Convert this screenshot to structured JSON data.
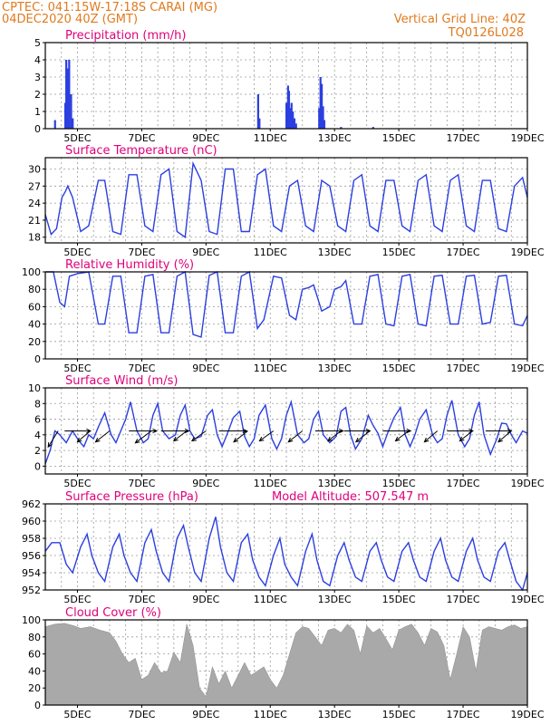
{
  "header": {
    "line1": "CPTEC:   041:15W-17:18S   CARAI (MG)",
    "line2": "04DEC2020 40Z (GMT)",
    "vgrid": "Vertical Grid Line: 40Z",
    "code": "TQ0126L028"
  },
  "chart_data": [
    {
      "id": "precip",
      "type": "bar",
      "title": "Precipitation (mm/h)",
      "ylim": [
        0,
        5
      ],
      "yticks": [
        0,
        1,
        2,
        3,
        4,
        5
      ],
      "xlim": [
        4.0,
        19.0
      ],
      "xtick_labels": [
        "5DEC",
        "7DEC",
        "9DEC",
        "11DEC",
        "13DEC",
        "15DEC",
        "17DEC",
        "19DEC"
      ],
      "color": "#2b3fe0",
      "x": [
        4.3,
        4.62,
        4.65,
        4.7,
        4.74,
        4.8,
        4.85,
        10.62,
        10.66,
        11.5,
        11.55,
        11.58,
        11.62,
        11.66,
        11.7,
        11.75,
        11.8,
        12.52,
        12.56,
        12.6,
        12.64,
        12.68,
        13.2,
        14.2
      ],
      "values": [
        0.5,
        1.5,
        4.0,
        3.5,
        4.0,
        2.0,
        0.6,
        2.0,
        0.6,
        1.5,
        2.5,
        2.2,
        1.2,
        1.5,
        1.0,
        0.6,
        0.3,
        1.2,
        3.0,
        2.6,
        1.3,
        0.5,
        0.1,
        0.1
      ],
      "grid": true
    },
    {
      "id": "temp",
      "type": "line",
      "title": "Surface Temperature (nC)",
      "ylim": [
        17,
        32
      ],
      "yticks": [
        18,
        21,
        24,
        27,
        30
      ],
      "xlim": [
        4.0,
        19.0
      ],
      "xtick_labels": [
        "5DEC",
        "7DEC",
        "9DEC",
        "11DEC",
        "13DEC",
        "15DEC",
        "17DEC",
        "19DEC"
      ],
      "color": "#2b3fe0",
      "x": [
        4.0,
        4.18,
        4.35,
        4.52,
        4.62,
        4.7,
        4.85,
        5.1,
        5.35,
        5.65,
        5.85,
        6.1,
        6.35,
        6.6,
        6.85,
        7.1,
        7.35,
        7.6,
        7.85,
        8.1,
        8.35,
        8.6,
        8.85,
        9.1,
        9.35,
        9.6,
        9.85,
        10.1,
        10.35,
        10.6,
        10.85,
        11.1,
        11.35,
        11.6,
        11.85,
        12.1,
        12.35,
        12.6,
        12.85,
        13.1,
        13.35,
        13.6,
        13.85,
        14.1,
        14.35,
        14.6,
        14.85,
        15.1,
        15.35,
        15.6,
        15.85,
        16.1,
        16.35,
        16.6,
        16.85,
        17.1,
        17.35,
        17.6,
        17.85,
        18.1,
        18.35,
        18.6,
        18.85,
        19.0
      ],
      "y": [
        22,
        18.5,
        19.5,
        25,
        26,
        27,
        25,
        19,
        20,
        28,
        28,
        19,
        18.5,
        29,
        29,
        20,
        19,
        29,
        30,
        19,
        18,
        31,
        28,
        19,
        18.5,
        30,
        30,
        19,
        19,
        29,
        30,
        20,
        19,
        27,
        28,
        20,
        19,
        28,
        27,
        20,
        19,
        28,
        29,
        20,
        19,
        28,
        28,
        20,
        19,
        28,
        29,
        20,
        19,
        28,
        29,
        20,
        19,
        28,
        28,
        19.5,
        19,
        27,
        28.5,
        25
      ],
      "grid": true
    },
    {
      "id": "rh",
      "type": "line",
      "title": "Relative Humidity (%)",
      "ylim": [
        0,
        100
      ],
      "yticks": [
        0,
        20,
        40,
        60,
        80,
        100
      ],
      "xlim": [
        4.0,
        19.0
      ],
      "xtick_labels": [
        "5DEC",
        "7DEC",
        "9DEC",
        "11DEC",
        "13DEC",
        "15DEC",
        "17DEC",
        "19DEC"
      ],
      "color": "#2b3fe0",
      "x": [
        4.0,
        4.25,
        4.45,
        4.6,
        4.75,
        5.0,
        5.35,
        5.65,
        5.85,
        6.1,
        6.35,
        6.6,
        6.85,
        7.1,
        7.35,
        7.6,
        7.85,
        8.1,
        8.35,
        8.6,
        8.85,
        9.1,
        9.35,
        9.6,
        9.85,
        10.1,
        10.35,
        10.6,
        10.8,
        11.1,
        11.35,
        11.6,
        11.8,
        12.0,
        12.2,
        12.35,
        12.6,
        12.85,
        13.0,
        13.2,
        13.35,
        13.6,
        13.85,
        14.1,
        14.35,
        14.6,
        14.85,
        15.1,
        15.35,
        15.6,
        15.85,
        16.1,
        16.35,
        16.6,
        16.85,
        17.1,
        17.35,
        17.6,
        17.85,
        18.1,
        18.35,
        18.6,
        18.85,
        19.0
      ],
      "y": [
        100,
        100,
        65,
        60,
        95,
        98,
        100,
        40,
        40,
        95,
        95,
        30,
        30,
        95,
        97,
        30,
        30,
        95,
        100,
        28,
        25,
        96,
        100,
        30,
        30,
        95,
        100,
        35,
        45,
        95,
        93,
        50,
        45,
        80,
        82,
        85,
        55,
        60,
        80,
        83,
        90,
        40,
        40,
        95,
        97,
        40,
        38,
        95,
        97,
        40,
        38,
        95,
        96,
        40,
        40,
        95,
        96,
        40,
        42,
        95,
        96,
        40,
        38,
        50
      ],
      "grid": true
    },
    {
      "id": "wind",
      "type": "line",
      "title": "Surface Wind (m/s)",
      "ylim": [
        -1,
        10
      ],
      "yticks": [
        0,
        2,
        4,
        6,
        8,
        10
      ],
      "xlim": [
        4.0,
        19.0
      ],
      "xtick_labels": [
        "5DEC",
        "7DEC",
        "9DEC",
        "11DEC",
        "13DEC",
        "15DEC",
        "17DEC",
        "19DEC"
      ],
      "color": "#2b3fe0",
      "x": [
        4.0,
        4.15,
        4.3,
        4.45,
        4.65,
        4.85,
        5.05,
        5.2,
        5.35,
        5.5,
        5.65,
        5.85,
        6.05,
        6.2,
        6.35,
        6.5,
        6.65,
        6.85,
        7.05,
        7.2,
        7.35,
        7.5,
        7.65,
        7.85,
        8.05,
        8.2,
        8.35,
        8.5,
        8.65,
        8.85,
        9.05,
        9.2,
        9.35,
        9.5,
        9.65,
        9.85,
        10.05,
        10.2,
        10.35,
        10.5,
        10.65,
        10.85,
        11.05,
        11.2,
        11.35,
        11.5,
        11.65,
        11.85,
        12.05,
        12.2,
        12.35,
        12.5,
        12.65,
        12.85,
        13.05,
        13.2,
        13.35,
        13.5,
        13.65,
        13.85,
        14.05,
        14.2,
        14.35,
        14.5,
        14.65,
        14.85,
        15.05,
        15.2,
        15.35,
        15.5,
        15.65,
        15.85,
        16.05,
        16.2,
        16.35,
        16.5,
        16.65,
        16.85,
        17.05,
        17.2,
        17.35,
        17.5,
        17.65,
        17.85,
        18.05,
        18.2,
        18.35,
        18.5,
        18.65,
        18.85,
        19.0
      ],
      "y": [
        0.3,
        2,
        4.5,
        4,
        3,
        4.5,
        3.2,
        2.5,
        4,
        3.5,
        5,
        6.8,
        4,
        3,
        4.5,
        6,
        8.2,
        4.5,
        3,
        3.5,
        6.5,
        8,
        4.5,
        3.5,
        4,
        6.5,
        7.8,
        4.5,
        3.5,
        3.8,
        6.5,
        7.2,
        4,
        2.5,
        4,
        6.2,
        7,
        3.8,
        2.5,
        3.5,
        6.5,
        7.8,
        3.5,
        2.2,
        3.5,
        6.5,
        8.2,
        4,
        3,
        3.5,
        6,
        7,
        4,
        3,
        3.8,
        7,
        7.5,
        4,
        2.2,
        3.5,
        6.5,
        5.2,
        4.2,
        2.5,
        4.2,
        6.2,
        7.5,
        4,
        2.5,
        4,
        6,
        7.2,
        4,
        3,
        3.5,
        6.5,
        8.4,
        4,
        2.5,
        3.5,
        6.5,
        8.2,
        4,
        1.5,
        3.5,
        5.5,
        5.4,
        4,
        3,
        4.5,
        4.2
      ],
      "vectors": [
        {
          "x": 4.4,
          "u": -1.0,
          "v": -1.6
        },
        {
          "x": 4.6,
          "u": 2.6,
          "v": 0.0
        },
        {
          "x": 5.4,
          "u": -1.3,
          "v": -1.1
        },
        {
          "x": 6.0,
          "u": -1.4,
          "v": -1.1
        },
        {
          "x": 6.6,
          "u": 2.8,
          "v": 0.0
        },
        {
          "x": 7.3,
          "u": -1.6,
          "v": -1.2
        },
        {
          "x": 7.6,
          "u": 2.8,
          "v": 0.0
        },
        {
          "x": 8.4,
          "u": -1.3,
          "v": -1.0
        },
        {
          "x": 9.0,
          "u": -1.4,
          "v": -1.0
        },
        {
          "x": 9.4,
          "u": 2.8,
          "v": 0.0
        },
        {
          "x": 10.3,
          "u": -1.4,
          "v": -1.1
        },
        {
          "x": 11.1,
          "u": -1.4,
          "v": -1.0
        },
        {
          "x": 12.0,
          "u": -1.4,
          "v": -1.1
        },
        {
          "x": 12.4,
          "u": 2.8,
          "v": 0.0
        },
        {
          "x": 13.2,
          "u": -1.3,
          "v": -1.0
        },
        {
          "x": 13.3,
          "u": 2.6,
          "v": 0.0
        },
        {
          "x": 14.1,
          "u": -1.4,
          "v": -1.1
        },
        {
          "x": 14.5,
          "u": 2.8,
          "v": 0.0
        },
        {
          "x": 15.3,
          "u": -1.3,
          "v": -1.0
        },
        {
          "x": 16.2,
          "u": -1.3,
          "v": -1.1
        },
        {
          "x": 16.5,
          "u": 2.6,
          "v": 0.0
        },
        {
          "x": 17.3,
          "u": -1.3,
          "v": -1.0
        },
        {
          "x": 17.7,
          "u": 2.6,
          "v": 0.0
        },
        {
          "x": 18.5,
          "u": -1.3,
          "v": -1.1
        }
      ],
      "grid": true
    },
    {
      "id": "press",
      "type": "line",
      "title": "Surface Pressure (hPa)",
      "annotation": "Model Altitude: 507.547 m",
      "ylim": [
        952,
        962
      ],
      "yticks": [
        952,
        954,
        956,
        958,
        960,
        962
      ],
      "xlim": [
        4.0,
        19.0
      ],
      "xtick_labels": [
        "5DEC",
        "7DEC",
        "9DEC",
        "11DEC",
        "13DEC",
        "15DEC",
        "17DEC",
        "19DEC"
      ],
      "color": "#2b3fe0",
      "x": [
        4.0,
        4.2,
        4.45,
        4.65,
        4.85,
        5.1,
        5.3,
        5.45,
        5.65,
        5.85,
        6.1,
        6.3,
        6.45,
        6.65,
        6.85,
        7.1,
        7.3,
        7.45,
        7.65,
        7.85,
        8.1,
        8.3,
        8.45,
        8.65,
        8.85,
        9.1,
        9.3,
        9.45,
        9.65,
        9.85,
        10.1,
        10.3,
        10.45,
        10.65,
        10.85,
        11.1,
        11.3,
        11.45,
        11.65,
        11.85,
        12.1,
        12.3,
        12.45,
        12.65,
        12.85,
        13.1,
        13.3,
        13.45,
        13.65,
        13.85,
        14.1,
        14.3,
        14.45,
        14.65,
        14.85,
        15.1,
        15.3,
        15.45,
        15.65,
        15.85,
        16.1,
        16.3,
        16.45,
        16.65,
        16.85,
        17.1,
        17.3,
        17.45,
        17.65,
        17.85,
        18.1,
        18.3,
        18.45,
        18.65,
        18.85,
        19.0
      ],
      "y": [
        956.5,
        957.5,
        957.5,
        955,
        954,
        957,
        958.5,
        956,
        954,
        953,
        957,
        958.5,
        956,
        954,
        953,
        957.5,
        959,
        956.5,
        954,
        953,
        958,
        959.5,
        957,
        954,
        953,
        958,
        960.5,
        957,
        954,
        953,
        957.5,
        958.5,
        955.5,
        953.5,
        952.5,
        956,
        958,
        955,
        953.5,
        952.5,
        956.5,
        958.5,
        955.5,
        953,
        952.5,
        956,
        957.5,
        955.5,
        953.5,
        953,
        956.5,
        957.5,
        955.5,
        953.5,
        953,
        956.5,
        957.5,
        955.5,
        953.5,
        953,
        956.5,
        958,
        955.5,
        953.5,
        953,
        956.5,
        958,
        955.5,
        953.5,
        953,
        956.5,
        957.5,
        955.5,
        953,
        952,
        954
      ],
      "grid": true
    },
    {
      "id": "cloud",
      "type": "area",
      "title": "Cloud Cover (%)",
      "ylim": [
        0,
        100
      ],
      "yticks": [
        0,
        20,
        40,
        60,
        80,
        100
      ],
      "xlim": [
        4.0,
        19.0
      ],
      "xtick_labels": [
        "5DEC",
        "7DEC",
        "9DEC",
        "11DEC",
        "13DEC",
        "15DEC",
        "17DEC",
        "19DEC"
      ],
      "color": "#a9a9a9",
      "x": [
        4.0,
        4.3,
        4.6,
        4.9,
        5.1,
        5.4,
        5.7,
        6.0,
        6.2,
        6.4,
        6.6,
        6.8,
        7.0,
        7.2,
        7.4,
        7.6,
        7.8,
        8.0,
        8.2,
        8.4,
        8.6,
        8.8,
        9.0,
        9.2,
        9.4,
        9.6,
        9.8,
        10.0,
        10.2,
        10.4,
        10.6,
        10.8,
        11.0,
        11.2,
        11.4,
        11.6,
        11.8,
        12.0,
        12.2,
        12.4,
        12.6,
        12.8,
        13.0,
        13.2,
        13.4,
        13.6,
        13.8,
        14.0,
        14.2,
        14.4,
        14.6,
        14.8,
        15.0,
        15.2,
        15.4,
        15.6,
        15.8,
        16.0,
        16.2,
        16.4,
        16.6,
        16.8,
        17.0,
        17.2,
        17.4,
        17.6,
        17.8,
        18.0,
        18.2,
        18.4,
        18.6,
        18.8,
        19.0
      ],
      "y": [
        92,
        95,
        96,
        93,
        90,
        92,
        88,
        85,
        75,
        60,
        50,
        55,
        30,
        35,
        50,
        38,
        40,
        62,
        50,
        95,
        70,
        20,
        10,
        45,
        25,
        40,
        20,
        35,
        50,
        35,
        40,
        45,
        30,
        20,
        35,
        60,
        85,
        92,
        90,
        80,
        70,
        88,
        90,
        85,
        95,
        88,
        60,
        93,
        85,
        90,
        78,
        65,
        88,
        92,
        95,
        85,
        70,
        90,
        86,
        70,
        30,
        60,
        92,
        80,
        40,
        88,
        92,
        90,
        88,
        92,
        94,
        90,
        92
      ],
      "grid": true
    }
  ]
}
